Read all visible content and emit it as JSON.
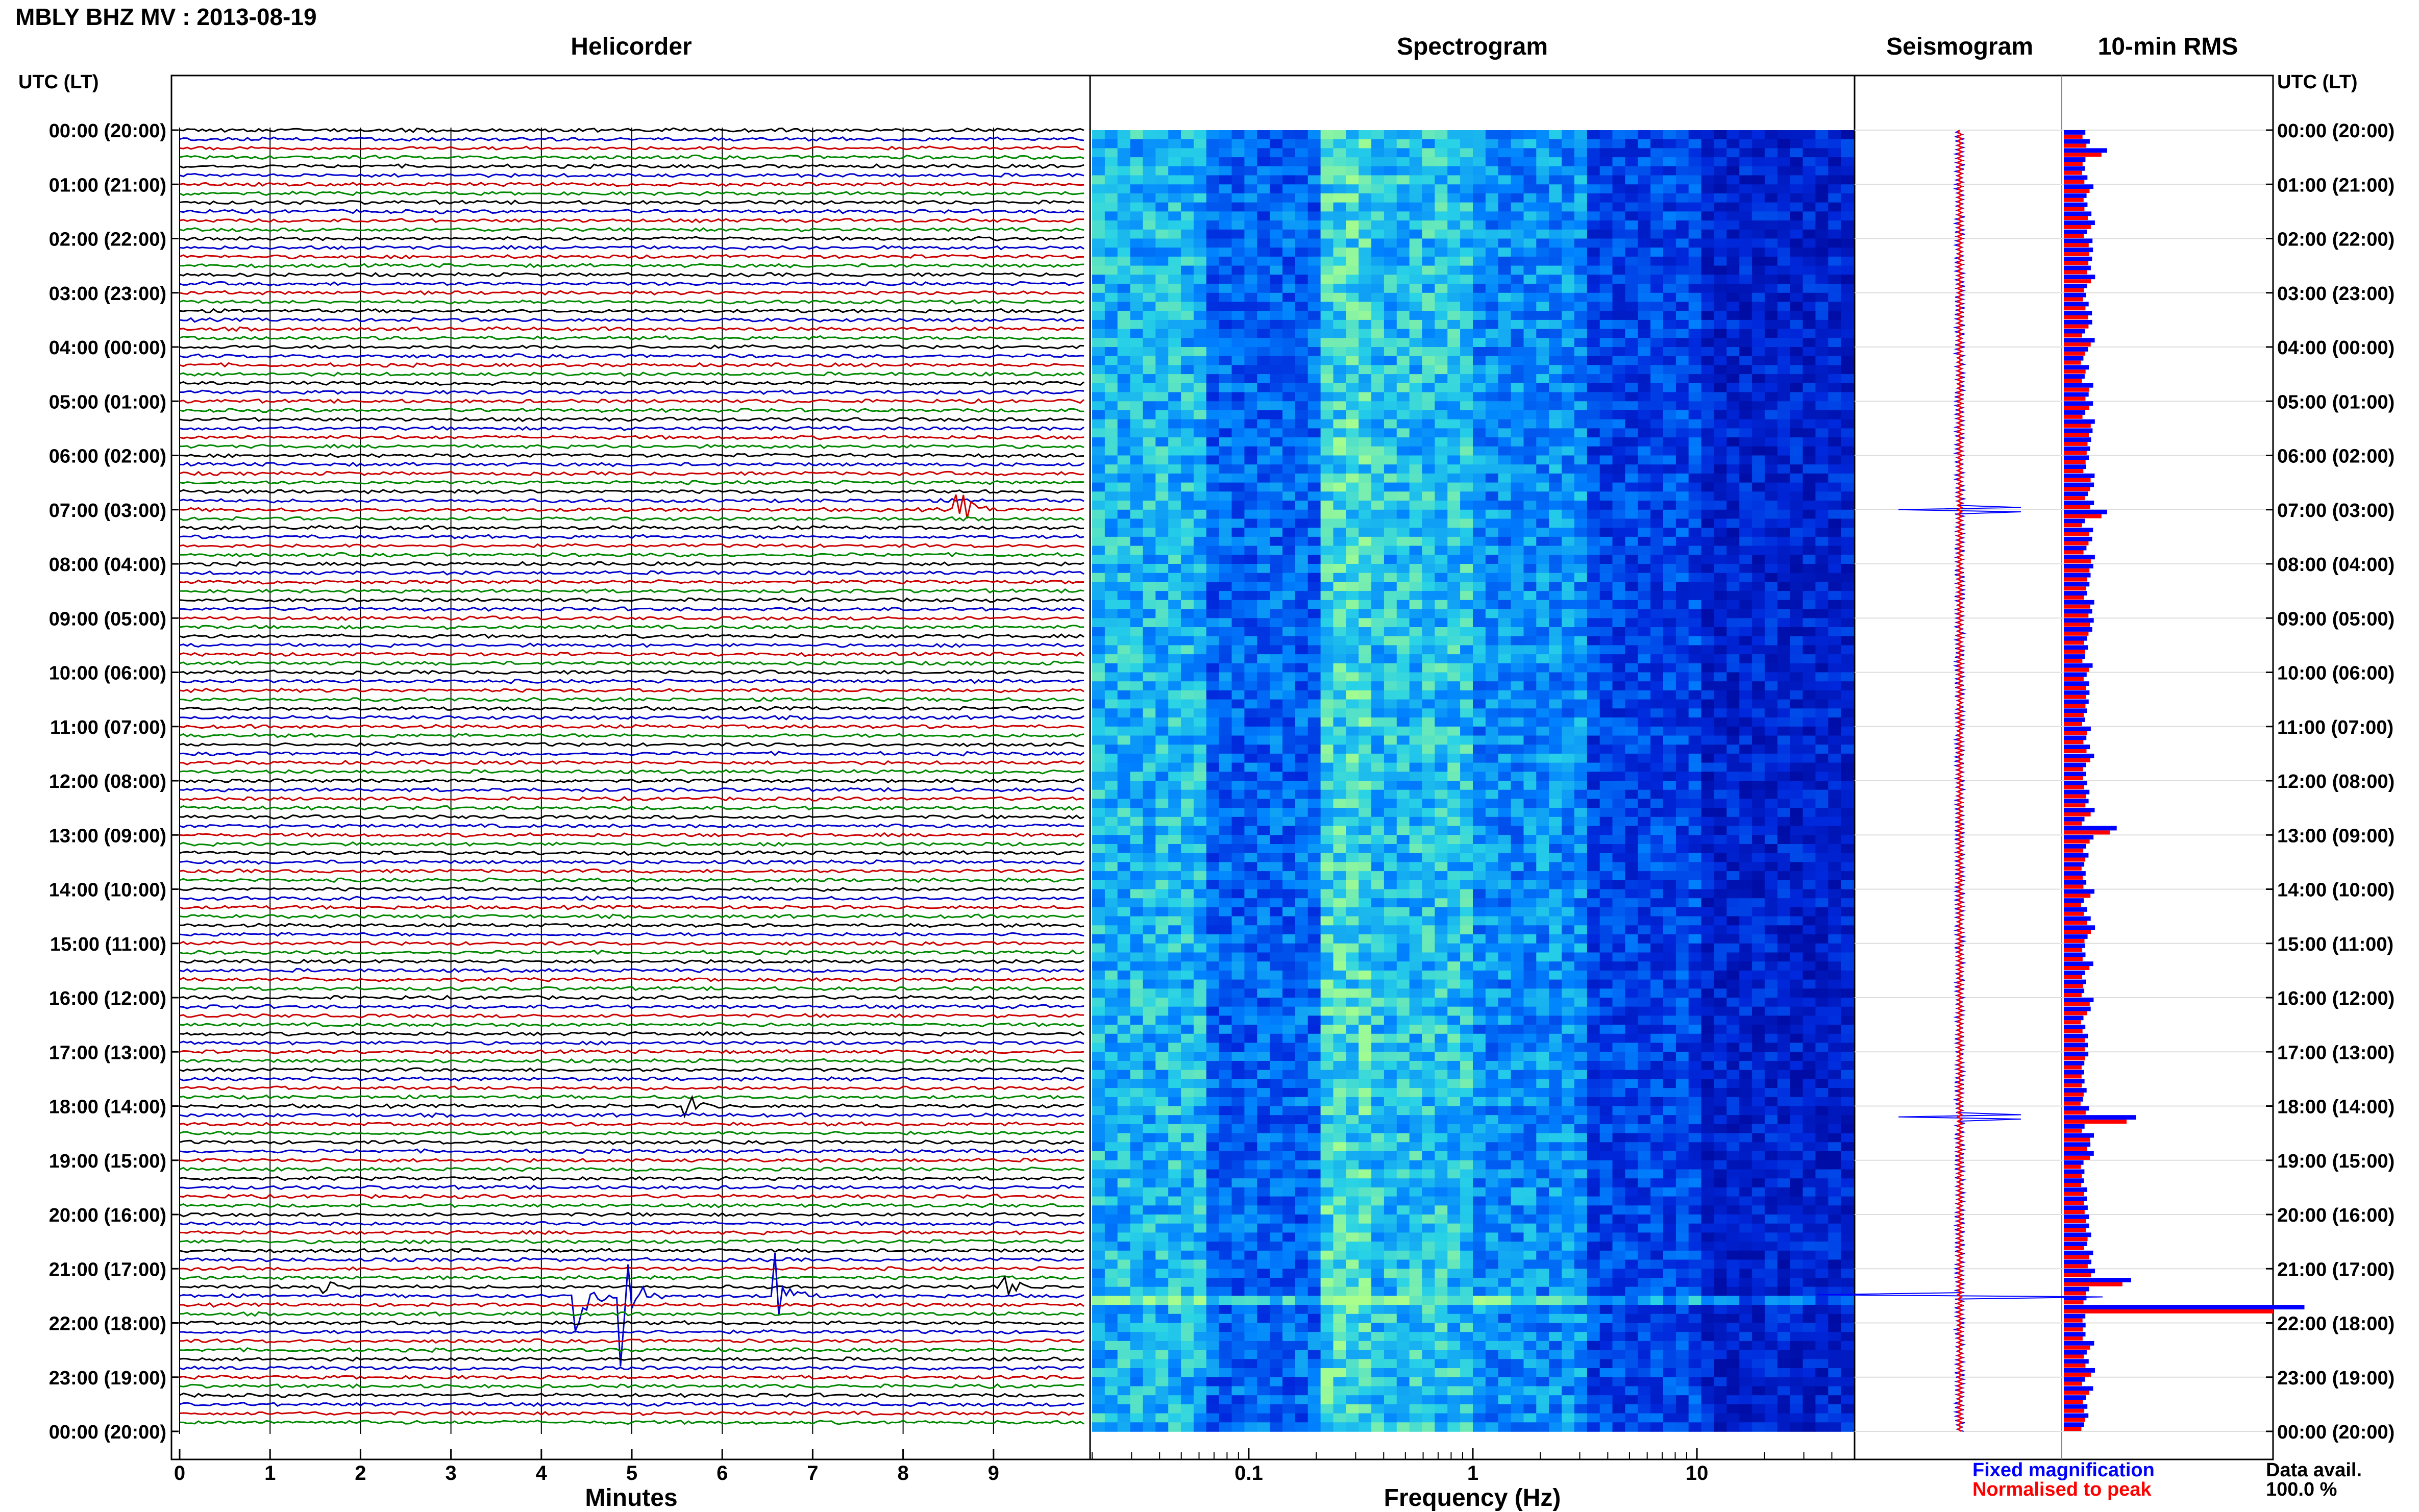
{
  "title": "MBLY BHZ MV : 2013-08-19",
  "panels": {
    "helicorder": "Helicorder",
    "spectrogram": "Spectrogram",
    "seismogram": "Seismogram",
    "rms": "10-min RMS"
  },
  "utc_header": "UTC (LT)",
  "helicorder_xlabel": "Minutes",
  "spectrogram_xlabel": "Frequency (Hz)",
  "legend": {
    "fixed": "Fixed magnification",
    "normalised": "Normalised to peak",
    "fixed_color": "#0000ff",
    "normalised_color": "#ff0000"
  },
  "data_avail": {
    "label": "Data avail.",
    "value": "100.0 %"
  },
  "colors": {
    "trace_cycle": [
      "#000000",
      "#0000cc",
      "#cc0000",
      "#008800"
    ],
    "spectrogram_low": "#0000aa",
    "spectrogram_high": "#40e0d0"
  },
  "chart_data": [
    {
      "type": "line",
      "name": "helicorder",
      "xlabel": "Minutes",
      "xlim": [
        0,
        10
      ],
      "xticks": [
        0,
        1,
        2,
        3,
        4,
        5,
        6,
        7,
        8,
        9
      ],
      "time_ticks": [
        "00:00 (20:00)",
        "01:00 (21:00)",
        "02:00 (22:00)",
        "03:00 (23:00)",
        "04:00 (00:00)",
        "05:00 (01:00)",
        "06:00 (02:00)",
        "07:00 (03:00)",
        "08:00 (04:00)",
        "09:00 (05:00)",
        "10:00 (06:00)",
        "11:00 (07:00)",
        "12:00 (08:00)",
        "13:00 (09:00)",
        "14:00 (10:00)",
        "15:00 (11:00)",
        "16:00 (12:00)",
        "17:00 (13:00)",
        "18:00 (14:00)",
        "19:00 (15:00)",
        "20:00 (16:00)",
        "21:00 (17:00)",
        "22:00 (18:00)",
        "23:00 (19:00)",
        "00:00 (20:00)"
      ],
      "events": [
        {
          "hours": 7.0,
          "minute": 8.6,
          "amplitude": 0.8
        },
        {
          "hours": 18.0,
          "minute": 5.6,
          "amplitude": 0.5
        },
        {
          "hours": 21.33,
          "minute": 1.6,
          "amplitude": 0.3
        },
        {
          "hours": 21.33,
          "minute": 9.1,
          "amplitude": 0.6
        },
        {
          "hours": 21.5,
          "minute": 4.4,
          "amplitude": 1.6
        },
        {
          "hours": 21.5,
          "minute": 4.9,
          "amplitude": 2.4
        },
        {
          "hours": 21.5,
          "minute": 6.6,
          "amplitude": 1.4
        }
      ]
    },
    {
      "type": "heatmap",
      "name": "spectrogram",
      "xlabel": "Frequency (Hz)",
      "xscale": "log",
      "xlim": [
        0.02,
        50
      ],
      "xticks": [
        0.1,
        1,
        10
      ],
      "xticklabels": [
        "0.1",
        "1",
        "10"
      ]
    },
    {
      "type": "line",
      "name": "seismogram",
      "spikes_hours": [
        7.0,
        18.2,
        21.5
      ]
    },
    {
      "type": "bar",
      "name": "10-min RMS",
      "bins_per_hour": 6,
      "peak_hours": 21.6,
      "notable": [
        {
          "hours": 0.3,
          "value": 0.18
        },
        {
          "hours": 7.0,
          "value": 0.18
        },
        {
          "hours": 12.9,
          "value": 0.22
        },
        {
          "hours": 18.2,
          "value": 0.3
        },
        {
          "hours": 21.2,
          "value": 0.28
        },
        {
          "hours": 21.6,
          "value": 1.0
        }
      ]
    }
  ]
}
